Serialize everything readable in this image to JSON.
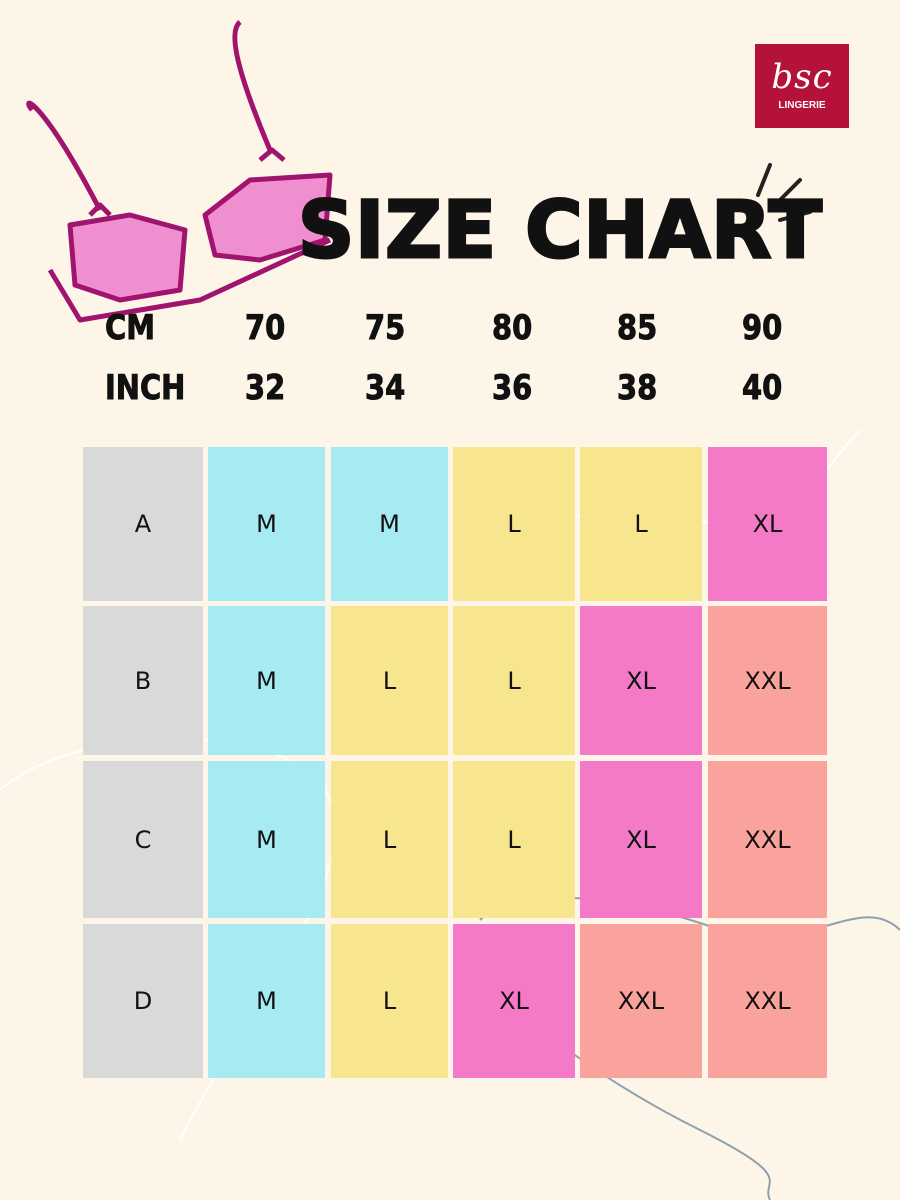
{
  "brand": {
    "logo_text": "bsc",
    "logo_sub": "LINGERIE",
    "color": "#b5123a"
  },
  "title": "SIZE CHART",
  "chart_data": {
    "type": "table",
    "title": "SIZE CHART",
    "header_rows": [
      {
        "label": "CM",
        "values": [
          "70",
          "75",
          "80",
          "85",
          "90"
        ]
      },
      {
        "label": "INCH",
        "values": [
          "32",
          "34",
          "36",
          "38",
          "40"
        ]
      }
    ],
    "rows": [
      {
        "cup": "A",
        "sizes": [
          "M",
          "M",
          "L",
          "L",
          "XL"
        ]
      },
      {
        "cup": "B",
        "sizes": [
          "M",
          "L",
          "L",
          "XL",
          "XXL"
        ]
      },
      {
        "cup": "C",
        "sizes": [
          "M",
          "L",
          "L",
          "XL",
          "XXL"
        ]
      },
      {
        "cup": "D",
        "sizes": [
          "M",
          "L",
          "XL",
          "XXL",
          "XXL"
        ]
      }
    ],
    "colors": {
      "cup": "#d9d9d9",
      "M": "#a7ebf2",
      "L": "#f7e68e",
      "XL": "#f47ac8",
      "XXL": "#f9a39c"
    }
  },
  "background": "#fdf5e8"
}
